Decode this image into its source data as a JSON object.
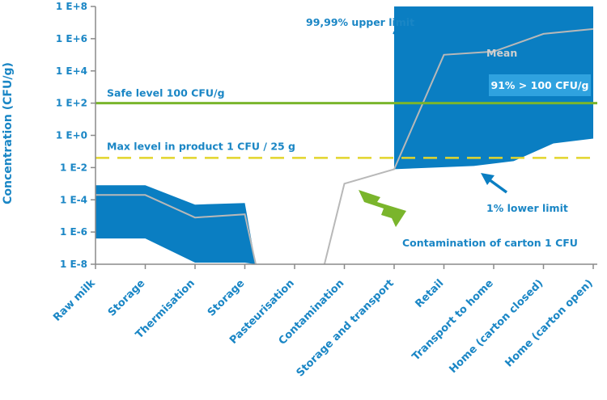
{
  "chart_data": {
    "type": "area",
    "ylabel": "Concentration (CFU/g)",
    "yscale": "log",
    "ylim_log10": [
      -8,
      8
    ],
    "y_ticks": [
      {
        "log": 8,
        "label": "1 E+8"
      },
      {
        "log": 6,
        "label": "1 E+6"
      },
      {
        "log": 4,
        "label": "1 E+4"
      },
      {
        "log": 2,
        "label": "1 E+2"
      },
      {
        "log": 0,
        "label": "1 E+0"
      },
      {
        "log": -2,
        "label": "1 E-2"
      },
      {
        "log": -4,
        "label": "1 E-4"
      },
      {
        "log": -6,
        "label": "1 E-6"
      },
      {
        "log": -8,
        "label": "1 E-8"
      }
    ],
    "categories": [
      "Raw milk",
      "Storage",
      "Thermisation",
      "Storage",
      "Pasteurisation",
      "Contamination",
      "Storage and transport",
      "Retail",
      "Transport to home",
      "Home (carton closed)",
      "Home (carton open)"
    ],
    "band_early": {
      "x": [
        0,
        1,
        2,
        3,
        3.22
      ],
      "upper_log10": [
        -3.1,
        -3.1,
        -4.3,
        -4.2,
        -8
      ],
      "lower_log10": [
        -6.4,
        -6.4,
        -7.9,
        -7.9,
        -8
      ]
    },
    "band_late": {
      "x": [
        6,
        6.8,
        7.6,
        8.4,
        9.2,
        10
      ],
      "upper_log10": [
        8,
        8,
        8,
        8,
        8,
        8
      ],
      "lower_log10": [
        -2.1,
        -2.0,
        -1.9,
        -1.6,
        -0.5,
        -0.2
      ]
    },
    "mean_early": {
      "x": [
        0,
        1,
        2,
        3,
        3.22
      ],
      "log10": [
        -3.7,
        -3.7,
        -5.1,
        -4.9,
        -8
      ]
    },
    "mean_late": {
      "x": [
        4.6,
        5,
        6,
        7,
        8,
        9,
        10
      ],
      "log10": [
        -8,
        -3,
        -2.1,
        5,
        5.2,
        6.3,
        6.6
      ]
    },
    "safe_level": {
      "log10": 2,
      "label": "Safe level 100 CFU/g",
      "color": "#7ab52c"
    },
    "max_level": {
      "log10": -1.4,
      "label": "Max level in product 1 CFU / 25 g",
      "color": "#e2d52b"
    },
    "annotations": {
      "upper_limit": "99,99% upper limit",
      "lower_limit": "1% lower limit",
      "mean": "Mean",
      "exceed": "91% > 100 CFU/g",
      "contamination": "Contamination of carton 1 CFU"
    },
    "colors": {
      "band": "#0a7ec2",
      "text": "#1a86c5",
      "mean": "#b8b8b8",
      "axis": "#8a8a8a",
      "bolt": "#7ab52c",
      "exceed_box": "#2fa2df"
    }
  }
}
